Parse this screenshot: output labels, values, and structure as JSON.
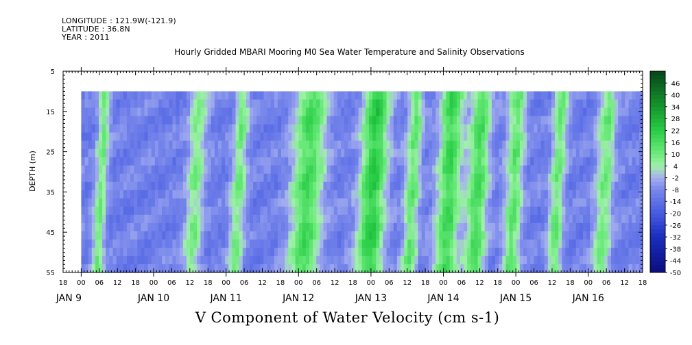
{
  "header": {
    "longitude": "LONGITUDE : 121.9W(-121.9)",
    "latitude": "LATITUDE : 36.8N",
    "year": "YEAR : 2011"
  },
  "chart_data": {
    "type": "heatmap",
    "title": "Hourly Gridded MBARI Mooring M0 Sea Water Temperature and Salinity Observations",
    "variable": "V Component of Water Velocity (cm s-1)",
    "ylabel": "DEPTH (m)",
    "y_ticks": [
      "5",
      "15",
      "25",
      "35",
      "45",
      "55"
    ],
    "ylim": [
      5,
      55
    ],
    "y_inverted": true,
    "data_depth_range": [
      10,
      55
    ],
    "x_range_hours": [
      "JAN 8 18:00",
      "JAN 16 18:00"
    ],
    "data_time_range": [
      "JAN 9 00:00",
      "JAN 16 18:00"
    ],
    "hour_ticks": [
      "18",
      "00",
      "06",
      "12",
      "18",
      "00",
      "06",
      "12",
      "18",
      "00",
      "06",
      "12",
      "18",
      "00",
      "06",
      "12",
      "18",
      "00",
      "06",
      "12",
      "18",
      "00",
      "06",
      "12",
      "18",
      "00",
      "06",
      "12",
      "18",
      "00",
      "06",
      "12",
      "18"
    ],
    "day_labels": [
      "JAN  9",
      "JAN 10",
      "JAN 11",
      "JAN 12",
      "JAN 13",
      "JAN 14",
      "JAN 15",
      "JAN 16"
    ],
    "colorbar_labels": [
      "46",
      "40",
      "34",
      "28",
      "22",
      "16",
      "10",
      "4",
      "-2",
      "-8",
      "-14",
      "-20",
      "-26",
      "-32",
      "-38",
      "-44",
      "-50"
    ],
    "colorbar_range": [
      -50,
      52
    ],
    "positive_bands": [
      {
        "center_day_offset": 0.25,
        "width": 0.08,
        "strength": 8
      },
      {
        "center_day_offset": 1.55,
        "width": 0.12,
        "strength": 6
      },
      {
        "center_day_offset": 2.15,
        "width": 0.1,
        "strength": 7
      },
      {
        "center_day_offset": 3.1,
        "width": 0.22,
        "strength": 14
      },
      {
        "center_day_offset": 4.0,
        "width": 0.18,
        "strength": 20
      },
      {
        "center_day_offset": 4.55,
        "width": 0.1,
        "strength": 10
      },
      {
        "center_day_offset": 5.05,
        "width": 0.16,
        "strength": 16
      },
      {
        "center_day_offset": 5.45,
        "width": 0.14,
        "strength": 14
      },
      {
        "center_day_offset": 5.95,
        "width": 0.12,
        "strength": 10
      },
      {
        "center_day_offset": 6.55,
        "width": 0.1,
        "strength": 9
      },
      {
        "center_day_offset": 7.2,
        "width": 0.12,
        "strength": 8
      },
      {
        "center_day_offset": 7.95,
        "width": 0.06,
        "strength": 6
      }
    ],
    "background_value": -10,
    "colors": {
      "strong_positive": "#0c5e1a",
      "positive": "#2cd24a",
      "weak_positive": "#8ff28c",
      "weak_negative": "#9aa5ee",
      "negative": "#5463e0",
      "strong_negative": "#0b0d7c"
    }
  }
}
